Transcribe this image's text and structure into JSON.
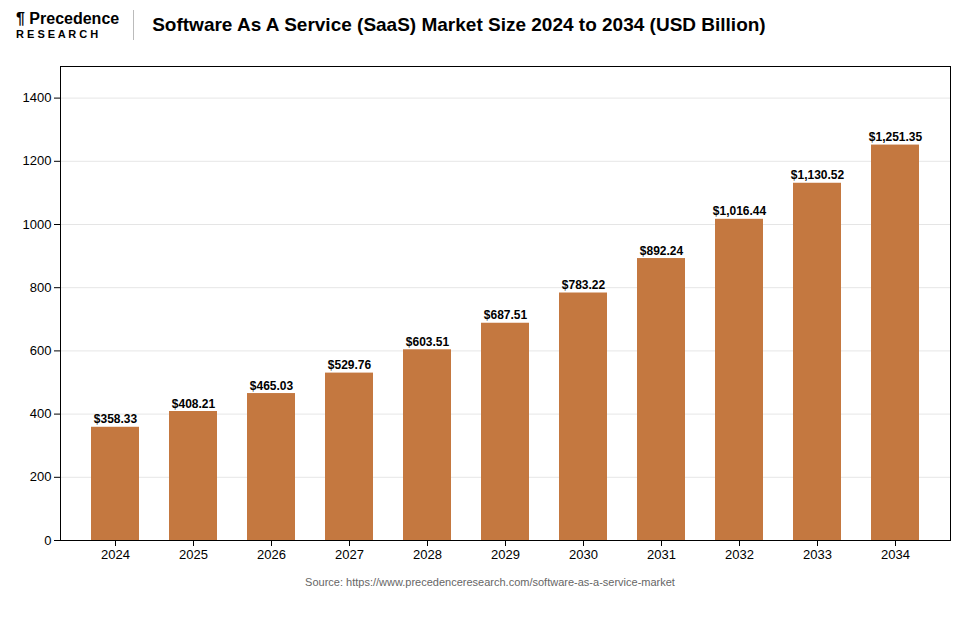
{
  "chart_data": {
    "type": "bar",
    "title": "Software As A Service (SaaS) Market Size 2024 to 2034 (USD Billion)",
    "annotations": [
      "¶ Precedence",
      "R E S E A R C H",
      "Source: https://www.precedenceresearch.com/software-as-a-service-market"
    ],
    "categories": [
      "2024",
      "2025",
      "2026",
      "2027",
      "2028",
      "2029",
      "2030",
      "2031",
      "2032",
      "2033",
      "2034"
    ],
    "values": [
      358.33,
      408.21,
      465.03,
      529.76,
      603.51,
      687.51,
      783.22,
      892.24,
      1016.44,
      1130.52,
      1251.35
    ],
    "value_labels": [
      "$358.33",
      "$408.21",
      "$465.03",
      "$529.76",
      "$603.51",
      "$687.51",
      "$783.22",
      "$892.24",
      "$1,016.44",
      "$1,130.52",
      "$1,251.35"
    ],
    "color": "#C47840",
    "ylim": [
      0,
      1500
    ],
    "yticks": [
      0,
      200,
      400,
      600,
      800,
      1000,
      1200,
      1400
    ],
    "grid": true,
    "data_labels": true
  }
}
